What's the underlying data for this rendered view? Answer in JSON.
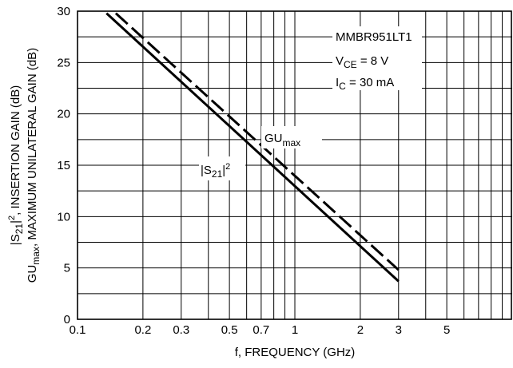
{
  "chart_data": {
    "type": "line",
    "xlabel": "f, FREQUENCY (GHz)",
    "ylabel_line1": {
      "parts": [
        "|S",
        "21",
        "|",
        "2",
        ", INSERTION GAIN (dB)"
      ]
    },
    "ylabel_line2": {
      "parts": [
        "GU",
        "max",
        ", MAXIMUM UNILATERAL GAIN (dB)"
      ]
    },
    "xscale": "log",
    "xlim": [
      0.1,
      10
    ],
    "ylim": [
      0,
      30
    ],
    "grid": true,
    "x_ticks": [
      {
        "value": 0.1,
        "label": "0.1"
      },
      {
        "value": 0.2,
        "label": "0.2"
      },
      {
        "value": 0.3,
        "label": "0.3"
      },
      {
        "value": 0.5,
        "label": "0.5"
      },
      {
        "value": 0.7,
        "label": "0.7"
      },
      {
        "value": 1,
        "label": "1"
      },
      {
        "value": 2,
        "label": "2"
      },
      {
        "value": 3,
        "label": "3"
      },
      {
        "value": 5,
        "label": "5"
      }
    ],
    "y_ticks": [
      {
        "value": 0,
        "label": "0"
      },
      {
        "value": 5,
        "label": "5"
      },
      {
        "value": 10,
        "label": "10"
      },
      {
        "value": 15,
        "label": "15"
      },
      {
        "value": 20,
        "label": "20"
      },
      {
        "value": 25,
        "label": "25"
      },
      {
        "value": 30,
        "label": "30"
      }
    ],
    "series": [
      {
        "label_parts": [
          "GU",
          "max"
        ],
        "style": "dashed",
        "x": [
          0.15,
          3.0
        ],
        "y": [
          29.8,
          4.8
        ]
      },
      {
        "label_parts": [
          "|S",
          "21",
          "|",
          "2"
        ],
        "style": "solid",
        "x": [
          0.136,
          3.0
        ],
        "y": [
          29.8,
          3.7
        ]
      }
    ],
    "annotations": {
      "device": "MMBR951LT1",
      "vce": {
        "main": "V",
        "sub": "CE",
        "rest": " = 8 V"
      },
      "ic": {
        "main": "I",
        "sub": "C",
        "rest": " = 30 mA"
      }
    },
    "colors": {
      "line": "#000000",
      "grid": "#000000",
      "background": "#ffffff"
    }
  }
}
